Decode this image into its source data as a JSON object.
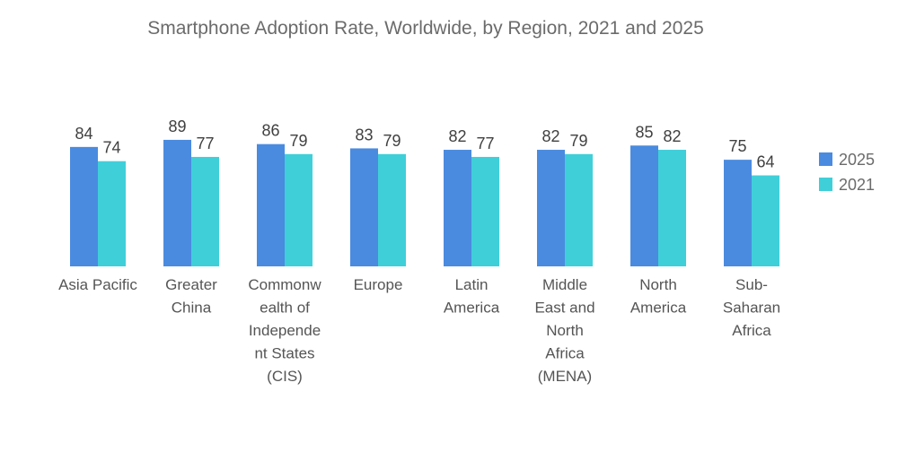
{
  "chart_data": {
    "type": "bar",
    "title": "Smartphone Adoption Rate, Worldwide, by Region, 2021 and 2025",
    "xlabel": "",
    "ylabel": "",
    "ylim": [
      0,
      100
    ],
    "grid": false,
    "legend_position": "right",
    "categories": [
      [
        "Asia Pacific"
      ],
      [
        "Greater",
        "China"
      ],
      [
        "Commonw",
        "ealth of",
        "Independe",
        "nt States",
        "(CIS)"
      ],
      [
        "Europe"
      ],
      [
        "Latin",
        "America"
      ],
      [
        "Middle",
        "East and",
        "North",
        "Africa",
        "(MENA)"
      ],
      [
        "North",
        "America"
      ],
      [
        "Sub-",
        "Saharan",
        "Africa"
      ]
    ],
    "series": [
      {
        "name": "2025",
        "color": "#4a8be0",
        "values": [
          84,
          89,
          86,
          83,
          82,
          82,
          85,
          75
        ]
      },
      {
        "name": "2021",
        "color": "#3fcfd9",
        "values": [
          74,
          77,
          79,
          79,
          77,
          79,
          82,
          64
        ]
      }
    ]
  }
}
